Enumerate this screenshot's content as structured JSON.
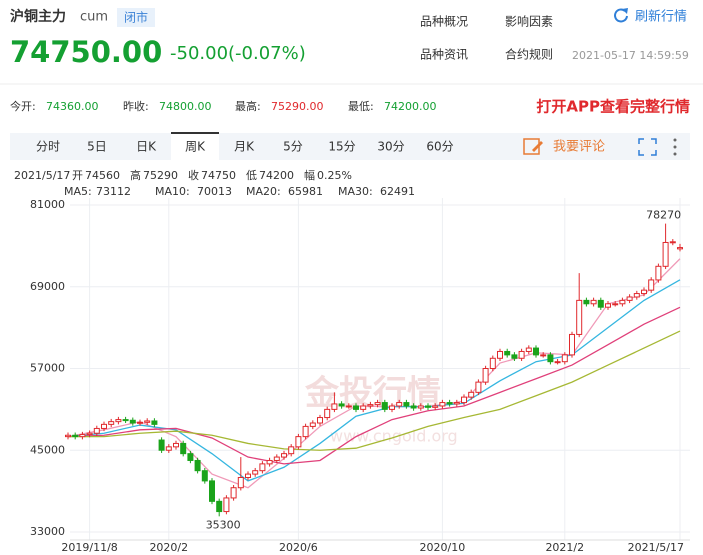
{
  "header": {
    "name": "沪铜主力",
    "code": "cum",
    "status": "闭市",
    "price": "74750.00",
    "change": "-50.00(-0.07%)",
    "links": [
      "品种概况",
      "影响因素",
      "品种资讯",
      "合约规则"
    ],
    "refresh": "刷新行情",
    "timestamp": "2021-05-17 14:59:59"
  },
  "stats": [
    {
      "label": "今开:",
      "value": "74360.00"
    },
    {
      "label": "昨收:",
      "value": "74800.00"
    },
    {
      "label": "最高:",
      "value": "75290.00"
    },
    {
      "label": "最低:",
      "value": "74200.00"
    }
  ],
  "stats_promo": "打开APP查看完整行情",
  "tabs": [
    {
      "label": "分时"
    },
    {
      "label": "5日"
    },
    {
      "label": "日K"
    },
    {
      "label": "周K",
      "active": true
    },
    {
      "label": "月K"
    },
    {
      "label": "5分"
    },
    {
      "label": "15分"
    },
    {
      "label": "30分"
    },
    {
      "label": "60分"
    }
  ],
  "comment": "我要评论",
  "info": {
    "date": "2021/5/17",
    "items": [
      {
        "label": "开",
        "value": "74560"
      },
      {
        "label": "高",
        "value": "75290"
      },
      {
        "label": "收",
        "value": "74750"
      },
      {
        "label": "低",
        "value": "74200"
      },
      {
        "label": "幅",
        "value": "0.25%"
      }
    ]
  },
  "watermark": {
    "title": "金投行情",
    "url": "www.cngold.org"
  },
  "chart_data": {
    "type": "candlestick",
    "up_color": "#e0292d",
    "down_color": "#1aa31a",
    "ylim": [
      33000,
      81000
    ],
    "yticks": [
      33000,
      45000,
      57000,
      69000,
      81000
    ],
    "grid": true,
    "categories": [
      null,
      null,
      null,
      "2019/11/8",
      null,
      null,
      null,
      null,
      null,
      null,
      null,
      null,
      null,
      null,
      "2020/2",
      null,
      null,
      null,
      null,
      null,
      null,
      null,
      null,
      null,
      null,
      null,
      null,
      null,
      null,
      null,
      null,
      null,
      "2020/6",
      null,
      null,
      null,
      null,
      null,
      null,
      null,
      null,
      null,
      null,
      null,
      null,
      null,
      null,
      null,
      null,
      null,
      null,
      null,
      "2020/10",
      null,
      null,
      null,
      null,
      null,
      null,
      null,
      null,
      null,
      null,
      null,
      null,
      null,
      null,
      null,
      null,
      "2021/2",
      null,
      null,
      null,
      null,
      null,
      null,
      null,
      null,
      null,
      null,
      null,
      null,
      null,
      null,
      null,
      "2021/5/17"
    ],
    "open": [
      47000,
      47200,
      47000,
      47300,
      47500,
      48200,
      48800,
      49200,
      49500,
      49400,
      49000,
      49100,
      49300,
      46500,
      45000,
      45500,
      46000,
      44500,
      43500,
      42000,
      40500,
      37500,
      36000,
      38000,
      39500,
      41000,
      41500,
      42000,
      43000,
      43500,
      44000,
      44500,
      45500,
      47000,
      48500,
      49000,
      49800,
      51000,
      51800,
      51500,
      51500,
      51000,
      51500,
      51700,
      52000,
      51000,
      51500,
      52000,
      51500,
      51200,
      51500,
      51300,
      51500,
      52000,
      51800,
      52000,
      52800,
      53500,
      55000,
      57000,
      58500,
      59500,
      59000,
      58500,
      59500,
      60000,
      59000,
      59000,
      58000,
      58000,
      59000,
      62000,
      67000,
      66500,
      67000,
      66000,
      66500,
      66500,
      67000,
      67500,
      68000,
      68500,
      70000,
      72000,
      75500,
      74560
    ],
    "high": [
      47600,
      47600,
      47700,
      47900,
      48600,
      49200,
      49600,
      49900,
      49900,
      49800,
      49500,
      49700,
      49700,
      46900,
      45900,
      46400,
      46400,
      44900,
      43900,
      42400,
      40900,
      37900,
      38400,
      39900,
      44000,
      41900,
      42400,
      43400,
      43900,
      44400,
      44900,
      45900,
      47400,
      48900,
      49400,
      50200,
      51400,
      53500,
      52200,
      51900,
      51900,
      51900,
      52100,
      52400,
      52400,
      51900,
      52400,
      52400,
      51900,
      51900,
      51900,
      51900,
      52400,
      52400,
      52400,
      53200,
      53900,
      55400,
      57400,
      58900,
      59900,
      59900,
      59400,
      59900,
      60400,
      60400,
      59400,
      59400,
      58400,
      59400,
      62400,
      71000,
      67400,
      67400,
      67400,
      66900,
      66900,
      67400,
      67900,
      68400,
      68900,
      70400,
      72400,
      78270,
      76000,
      75290
    ],
    "low": [
      46600,
      46600,
      46600,
      46900,
      47100,
      47800,
      48400,
      48800,
      49000,
      48600,
      48600,
      48700,
      48400,
      44600,
      44600,
      45100,
      44100,
      43100,
      41600,
      40100,
      37100,
      35300,
      35600,
      37600,
      39100,
      40600,
      41100,
      41600,
      42600,
      43100,
      43600,
      44100,
      45100,
      46600,
      48100,
      48600,
      49400,
      50600,
      51100,
      51100,
      50600,
      50600,
      51100,
      51300,
      50600,
      50600,
      51100,
      51100,
      50800,
      50800,
      50900,
      50900,
      51100,
      51400,
      51400,
      51600,
      52400,
      53100,
      54600,
      56600,
      58100,
      58600,
      58100,
      58100,
      59100,
      58600,
      58600,
      57600,
      57600,
      57600,
      58600,
      61600,
      66100,
      66100,
      65600,
      65600,
      66100,
      66100,
      66600,
      67100,
      67600,
      68100,
      69600,
      71600,
      75100,
      74200
    ],
    "close": [
      47200,
      47000,
      47300,
      47500,
      48200,
      48800,
      49200,
      49500,
      49400,
      49000,
      49100,
      49300,
      48800,
      45000,
      45500,
      46000,
      44500,
      43500,
      42000,
      40500,
      37500,
      36000,
      38000,
      39500,
      41000,
      41500,
      42000,
      43000,
      43500,
      44000,
      44500,
      45500,
      47000,
      48500,
      49000,
      49800,
      51000,
      51800,
      51500,
      51500,
      51000,
      51500,
      51700,
      52000,
      51000,
      51500,
      52000,
      51500,
      51200,
      51500,
      51300,
      51500,
      52000,
      51800,
      52000,
      52800,
      53500,
      55000,
      57000,
      58500,
      59500,
      59000,
      58500,
      59500,
      60000,
      59000,
      59000,
      58000,
      58000,
      59000,
      62000,
      67000,
      66500,
      67000,
      66000,
      66500,
      66500,
      67000,
      67500,
      68000,
      68500,
      70000,
      72000,
      75500,
      75600,
      74750
    ],
    "ma_x": [
      0,
      5,
      10,
      15,
      20,
      25,
      30,
      35,
      40,
      45,
      50,
      55,
      60,
      65,
      70,
      75,
      80,
      85
    ],
    "ma": [
      {
        "name": "MA5:",
        "color": "#f09ab8",
        "values": [
          47000,
          48000,
          49200,
          47000,
          41500,
          39500,
          43800,
          48500,
          51500,
          51400,
          51400,
          52200,
          57800,
          59300,
          59000,
          66500,
          67800,
          73112
        ]
      },
      {
        "name": "MA10:",
        "color": "#35b6e0",
        "values": [
          47000,
          47500,
          48700,
          48000,
          44500,
          40500,
          42500,
          46000,
          50000,
          51400,
          51400,
          51900,
          55200,
          58000,
          59000,
          63000,
          67000,
          70013
        ]
      },
      {
        "name": "MA20:",
        "color": "#e0407a",
        "values": [
          47000,
          47200,
          48000,
          48200,
          46800,
          44000,
          43000,
          43500,
          47000,
          49500,
          50800,
          51500,
          53500,
          55500,
          57500,
          60500,
          63500,
          65981
        ]
      },
      {
        "name": "MA30:",
        "color": "#a6b834",
        "values": [
          47000,
          47000,
          47500,
          47800,
          47200,
          46000,
          45200,
          45000,
          45300,
          46800,
          48500,
          49800,
          51000,
          53000,
          55000,
          57500,
          60000,
          62491
        ]
      }
    ],
    "max_index": 83,
    "min_index": 21
  }
}
